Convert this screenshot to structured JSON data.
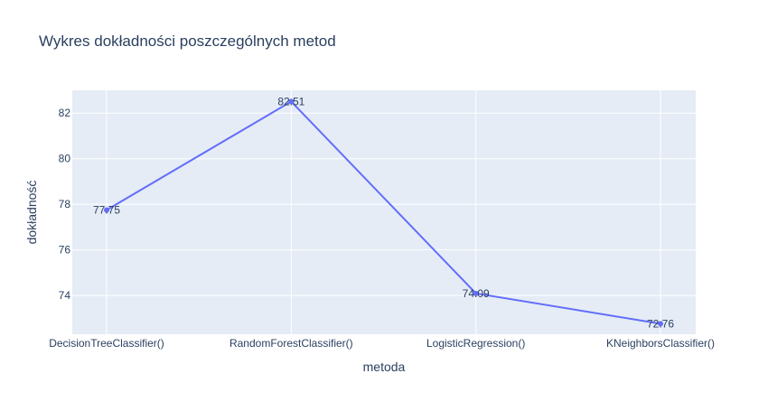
{
  "chart_data": {
    "type": "line",
    "title": "Wykres dokładności poszczególnych metod",
    "xlabel": "metoda",
    "ylabel": "dokładność",
    "categories": [
      "DecisionTreeClassifier()",
      "RandomForestClassifier()",
      "LogisticRegression()",
      "KNeighborsClassifier()"
    ],
    "series": [
      {
        "values": [
          77.75,
          82.51,
          74.09,
          72.76
        ],
        "data_labels": [
          "77.75",
          "82.51",
          "74.09",
          "72.76"
        ],
        "color": "#636efa"
      }
    ],
    "yticks": [
      74,
      76,
      78,
      80,
      82
    ],
    "ylim": [
      72.3,
      83.0
    ],
    "grid": true,
    "plot_background": "#e5ecf6",
    "text_color": "#2a3f5f"
  }
}
